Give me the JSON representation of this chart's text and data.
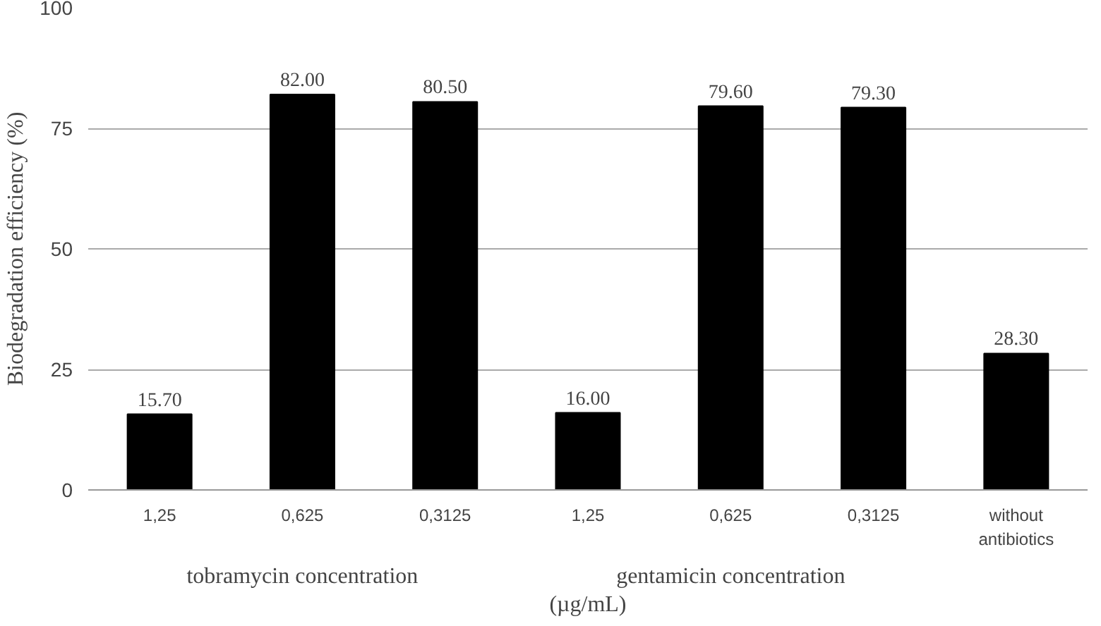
{
  "chart_data": {
    "type": "bar",
    "ylabel": "Biodegradation efficiency (%)",
    "xlabel": "(µg/mL)",
    "categories": [
      "1,25",
      "0,625",
      "0,3125",
      "1,25",
      "0,625",
      "0,3125",
      "without antibiotics"
    ],
    "values": [
      15.7,
      82.0,
      80.5,
      16.0,
      79.6,
      79.3,
      28.3
    ],
    "value_labels": [
      "15.70",
      "82.00",
      "80.50",
      "16.00",
      "79.60",
      "79.30",
      "28.30"
    ],
    "color": "#000000",
    "ylim": [
      0,
      100
    ],
    "yticks": [
      0,
      25,
      50,
      75,
      100
    ],
    "grid": "y",
    "annotations": [
      "tobramycin concentration",
      "gentamicin concentration"
    ]
  }
}
